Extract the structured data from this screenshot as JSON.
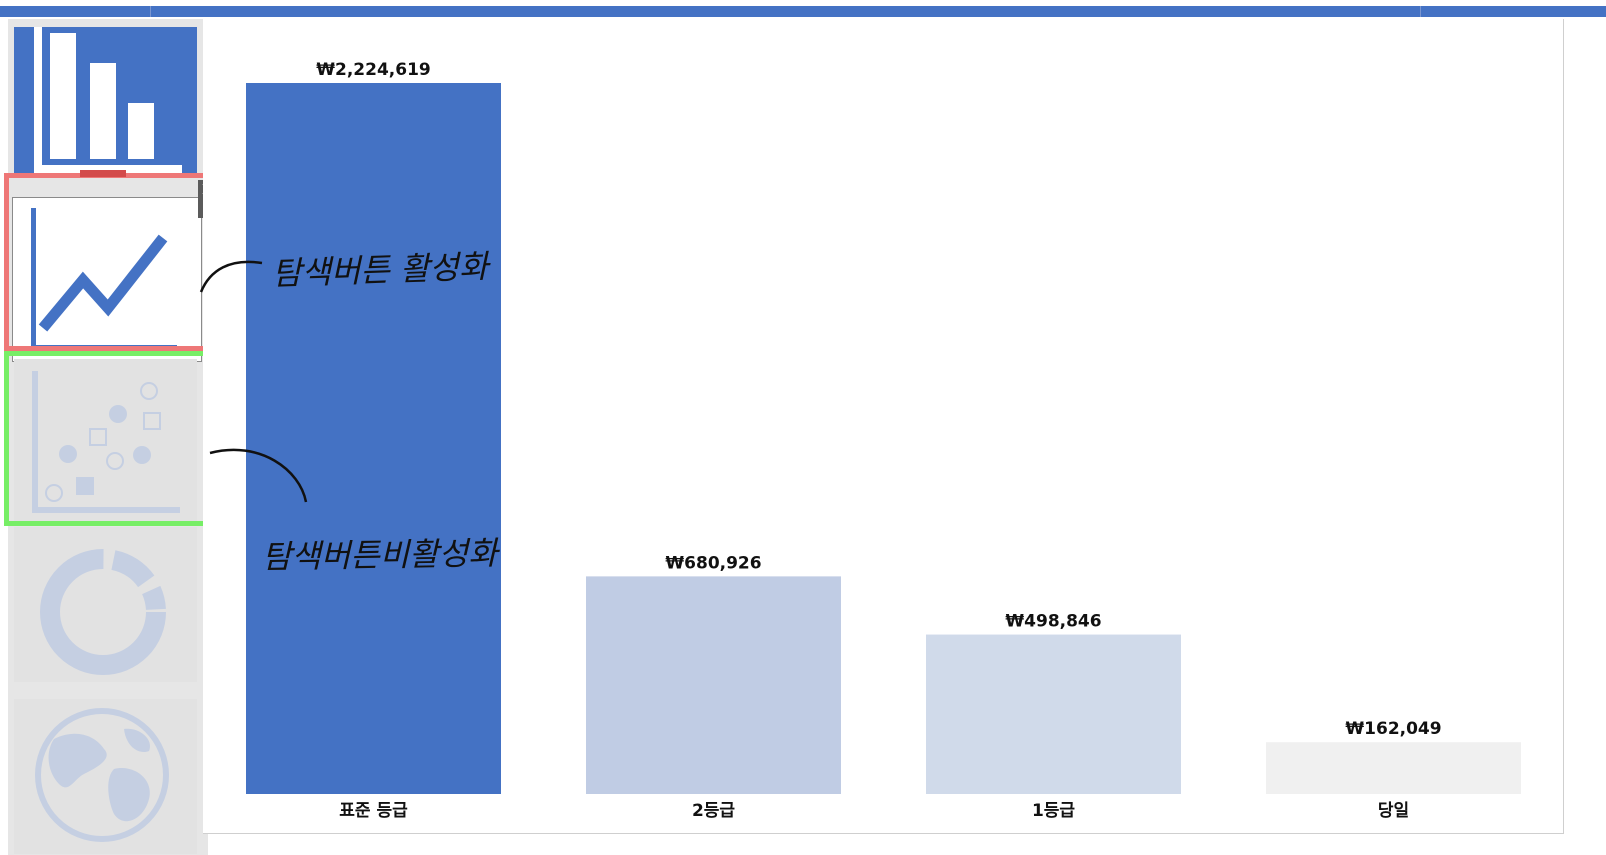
{
  "chart_data": {
    "type": "bar",
    "categories": [
      "표준 등급",
      "2등급",
      "1등급",
      "당일"
    ],
    "values": [
      2224619,
      680926,
      498846,
      162049
    ],
    "value_labels": [
      "₩2,224,619",
      "₩680,926",
      "₩498,846",
      "₩162,049"
    ],
    "bar_colors": [
      "#4472c4",
      "#c0cce4",
      "#d0daea",
      "#f0f0f0"
    ],
    "title": "",
    "xlabel": "",
    "ylabel": "",
    "ylim": [
      0,
      2224619
    ],
    "grid": false
  },
  "sidebar": {
    "buttons": [
      {
        "name": "bar-chart-button",
        "state": "selected"
      },
      {
        "name": "line-chart-button",
        "state": "enabled"
      },
      {
        "name": "scatter-chart-button",
        "state": "disabled"
      },
      {
        "name": "donut-chart-button",
        "state": "disabled"
      },
      {
        "name": "map-button",
        "state": "disabled"
      }
    ]
  },
  "annotations": {
    "active_note": "탐색버튼 활성화",
    "inactive_note": "탐색버튼비활성화"
  },
  "colors": {
    "accent": "#4472c4",
    "active_highlight": "#ee7777",
    "inactive_highlight": "#77ee66",
    "disabled_icon": "#c5cfe2"
  }
}
